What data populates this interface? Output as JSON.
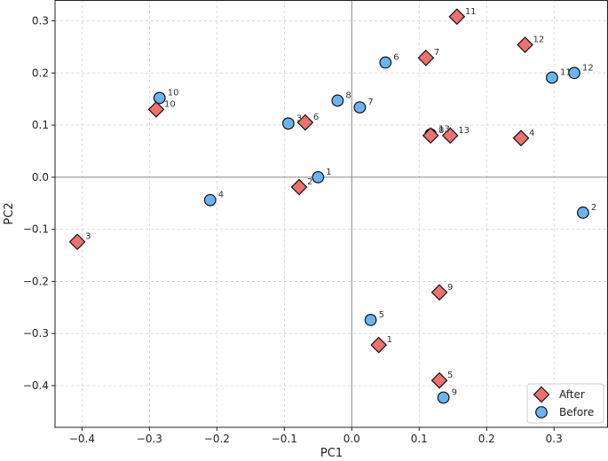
{
  "chart_data": {
    "type": "scatter",
    "title": "",
    "xlabel": "PC1",
    "ylabel": "PC2",
    "xlim": [
      -0.44,
      0.38
    ],
    "ylim": [
      -0.48,
      0.34
    ],
    "grid": true,
    "x_ticks": [
      -0.4,
      -0.3,
      -0.2,
      -0.1,
      0.0,
      0.1,
      0.2,
      0.3
    ],
    "y_ticks": [
      -0.4,
      -0.3,
      -0.2,
      -0.1,
      0.0,
      0.1,
      0.2,
      0.3
    ],
    "x_tick_labels": [
      "−0.4",
      "−0.3",
      "−0.2",
      "−0.1",
      "0.0",
      "0.1",
      "0.2",
      "0.3"
    ],
    "y_tick_labels": [
      "−0.4",
      "−0.3",
      "−0.2",
      "−0.1",
      "0.0",
      "0.1",
      "0.2",
      "0.3"
    ],
    "legend_position": "bottom-right",
    "series": [
      {
        "name": "After",
        "marker": "diamond",
        "color": "#f07070",
        "points": [
          {
            "label": "1",
            "x": 0.04,
            "y": -0.322
          },
          {
            "label": "2",
            "x": -0.078,
            "y": -0.019
          },
          {
            "label": "3",
            "x": -0.407,
            "y": -0.124
          },
          {
            "label": "4",
            "x": 0.251,
            "y": 0.075
          },
          {
            "label": "5",
            "x": 0.13,
            "y": -0.39
          },
          {
            "label": "6",
            "x": -0.069,
            "y": 0.105
          },
          {
            "label": "7",
            "x": 0.11,
            "y": 0.229
          },
          {
            "label": "8",
            "x": 0.117,
            "y": 0.08
          },
          {
            "label": "9",
            "x": 0.13,
            "y": -0.221
          },
          {
            "label": "10",
            "x": -0.29,
            "y": 0.13
          },
          {
            "label": "11",
            "x": 0.156,
            "y": 0.308
          },
          {
            "label": "12",
            "x": 0.257,
            "y": 0.254
          },
          {
            "label": "13",
            "x": 0.146,
            "y": 0.08
          }
        ]
      },
      {
        "name": "Before",
        "marker": "circle",
        "color": "#6ab4f5",
        "points": [
          {
            "label": "1",
            "x": -0.05,
            "y": 0.0
          },
          {
            "label": "2",
            "x": 0.343,
            "y": -0.068
          },
          {
            "label": "3",
            "x": -0.094,
            "y": 0.103
          },
          {
            "label": "4",
            "x": -0.21,
            "y": -0.044
          },
          {
            "label": "5",
            "x": 0.028,
            "y": -0.274
          },
          {
            "label": "6",
            "x": 0.05,
            "y": 0.22
          },
          {
            "label": "7",
            "x": 0.012,
            "y": 0.134
          },
          {
            "label": "8",
            "x": -0.021,
            "y": 0.147
          },
          {
            "label": "9",
            "x": 0.136,
            "y": -0.423
          },
          {
            "label": "10",
            "x": -0.285,
            "y": 0.152
          },
          {
            "label": "11",
            "x": 0.297,
            "y": 0.191
          },
          {
            "label": "12",
            "x": 0.33,
            "y": 0.2
          },
          {
            "label": "13",
            "x": 0.117,
            "y": 0.082
          }
        ]
      }
    ]
  }
}
